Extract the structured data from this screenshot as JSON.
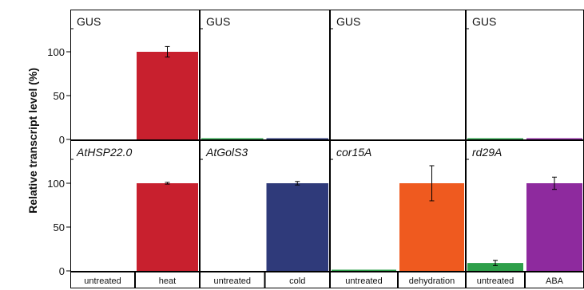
{
  "chart_data": {
    "type": "bar",
    "ylabel": "Relative transcript level (%)",
    "ylim": [
      0,
      140
    ],
    "yticks": [
      0,
      50,
      100
    ],
    "columns": [
      {
        "categories": [
          "untreated",
          "heat"
        ]
      },
      {
        "categories": [
          "untreated",
          "cold"
        ]
      },
      {
        "categories": [
          "untreated",
          "dehydration"
        ]
      },
      {
        "categories": [
          "untreated",
          "ABA"
        ]
      }
    ],
    "panels": [
      {
        "row": 0,
        "col": 0,
        "title": "GUS",
        "title_italic": false,
        "values": [
          0,
          100
        ],
        "errors": [
          0,
          6
        ],
        "colors": [
          "#2e9f4a",
          "#c8202e"
        ]
      },
      {
        "row": 0,
        "col": 1,
        "title": "GUS",
        "title_italic": false,
        "values": [
          0.5,
          0.5
        ],
        "errors": [
          0,
          0
        ],
        "colors": [
          "#2e9f4a",
          "#2f3a7a"
        ]
      },
      {
        "row": 0,
        "col": 2,
        "title": "GUS",
        "title_italic": false,
        "values": [
          0,
          0
        ],
        "errors": [
          0,
          0
        ],
        "colors": [
          "#2e9f4a",
          "#ef5a1f"
        ]
      },
      {
        "row": 0,
        "col": 3,
        "title": "GUS",
        "title_italic": false,
        "values": [
          0.5,
          0.5
        ],
        "errors": [
          0,
          0
        ],
        "colors": [
          "#2e9f4a",
          "#8e2a9e"
        ]
      },
      {
        "row": 1,
        "col": 0,
        "title": "AtHSP22.0",
        "title_italic": true,
        "values": [
          0,
          100
        ],
        "errors": [
          0,
          1
        ],
        "colors": [
          "#2e9f4a",
          "#c8202e"
        ]
      },
      {
        "row": 1,
        "col": 1,
        "title": "AtGolS3",
        "title_italic": true,
        "values": [
          0,
          100
        ],
        "errors": [
          0,
          2
        ],
        "colors": [
          "#2e9f4a",
          "#2f3a7a"
        ]
      },
      {
        "row": 1,
        "col": 2,
        "title": "cor15A",
        "title_italic": true,
        "values": [
          0.5,
          100
        ],
        "errors": [
          0,
          20
        ],
        "colors": [
          "#2e9f4a",
          "#ef5a1f"
        ]
      },
      {
        "row": 1,
        "col": 3,
        "title": "rd29A",
        "title_italic": true,
        "values": [
          9,
          100
        ],
        "errors": [
          3,
          7
        ],
        "colors": [
          "#2e9f4a",
          "#8e2a9e"
        ]
      }
    ]
  }
}
